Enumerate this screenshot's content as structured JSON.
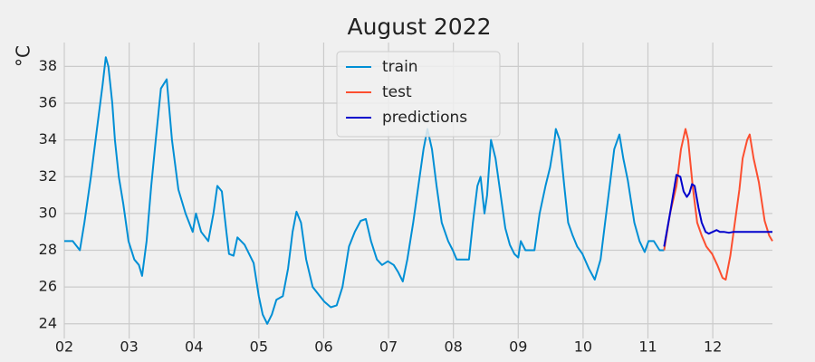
{
  "chart_data": {
    "type": "line",
    "title": "August 2022",
    "ylabel": "°C",
    "xlim": [
      2,
      12.92
    ],
    "ylim": [
      23.2,
      39.3
    ],
    "xticks": [
      {
        "value": 2,
        "label": "02"
      },
      {
        "value": 3,
        "label": "03"
      },
      {
        "value": 4,
        "label": "04"
      },
      {
        "value": 5,
        "label": "05"
      },
      {
        "value": 6,
        "label": "06"
      },
      {
        "value": 7,
        "label": "07"
      },
      {
        "value": 8,
        "label": "08"
      },
      {
        "value": 9,
        "label": "09"
      },
      {
        "value": 10,
        "label": "10"
      },
      {
        "value": 11,
        "label": "11"
      },
      {
        "value": 12,
        "label": "12"
      }
    ],
    "yticks": [
      24,
      26,
      28,
      30,
      32,
      34,
      36,
      38
    ],
    "grid": true,
    "legend": "upper center",
    "series": [
      {
        "name": "train",
        "color": "#008fd5",
        "x": [
          2.0,
          2.13,
          2.24,
          2.31,
          2.41,
          2.5,
          2.59,
          2.64,
          2.68,
          2.74,
          2.78,
          2.84,
          2.91,
          2.99,
          3.08,
          3.15,
          3.2,
          3.27,
          3.34,
          3.41,
          3.49,
          3.58,
          3.66,
          3.76,
          3.87,
          3.98,
          4.03,
          4.11,
          4.22,
          4.3,
          4.36,
          4.43,
          4.5,
          4.54,
          4.61,
          4.67,
          4.78,
          4.92,
          5.0,
          5.06,
          5.13,
          5.2,
          5.27,
          5.37,
          5.45,
          5.52,
          5.58,
          5.65,
          5.73,
          5.83,
          5.92,
          6.01,
          6.11,
          6.2,
          6.29,
          6.39,
          6.48,
          6.57,
          6.65,
          6.73,
          6.82,
          6.9,
          6.99,
          7.08,
          7.15,
          7.22,
          7.29,
          7.38,
          7.46,
          7.54,
          7.6,
          7.67,
          7.74,
          7.82,
          7.92,
          7.99,
          8.05,
          8.16,
          8.24,
          8.3,
          8.37,
          8.42,
          8.48,
          8.52,
          8.58,
          8.65,
          8.73,
          8.8,
          8.87,
          8.94,
          9.0,
          9.04,
          9.11,
          9.25,
          9.33,
          9.42,
          9.49,
          9.56,
          9.58,
          9.64,
          9.71,
          9.77,
          9.84,
          9.91,
          9.99,
          10.09,
          10.18,
          10.27,
          10.34,
          10.41,
          10.48,
          10.56,
          10.62,
          10.69,
          10.79,
          10.87,
          10.95,
          11.01,
          11.09,
          11.18,
          11.25
        ],
        "values": [
          28.5,
          28.5,
          28.0,
          29.5,
          32.0,
          34.5,
          37.0,
          38.5,
          38.0,
          36.0,
          34.0,
          32.0,
          30.5,
          28.5,
          27.5,
          27.2,
          26.6,
          28.5,
          31.5,
          34.0,
          36.8,
          37.3,
          34.0,
          31.3,
          30.0,
          29.0,
          30.0,
          29.0,
          28.5,
          30.0,
          31.5,
          31.2,
          29.0,
          27.8,
          27.7,
          28.7,
          28.3,
          27.3,
          25.5,
          24.5,
          24.0,
          24.5,
          25.3,
          25.5,
          27.0,
          29.0,
          30.1,
          29.5,
          27.5,
          26.0,
          25.6,
          25.2,
          24.9,
          25.0,
          26.0,
          28.2,
          29.0,
          29.6,
          29.7,
          28.5,
          27.5,
          27.2,
          27.4,
          27.2,
          26.8,
          26.3,
          27.5,
          29.5,
          31.5,
          33.5,
          34.6,
          33.5,
          31.5,
          29.5,
          28.5,
          28.0,
          27.5,
          27.5,
          27.5,
          29.5,
          31.5,
          32.0,
          30.0,
          31.0,
          34.0,
          33.0,
          31.0,
          29.2,
          28.3,
          27.8,
          27.6,
          28.5,
          28.0,
          28.0,
          30.0,
          31.5,
          32.5,
          34.0,
          34.6,
          34.0,
          31.5,
          29.5,
          28.8,
          28.2,
          27.8,
          27.0,
          26.4,
          27.5,
          29.5,
          31.5,
          33.5,
          34.3,
          33.0,
          31.8,
          29.5,
          28.5,
          27.9,
          28.5,
          28.5,
          28.0,
          28.0
        ]
      },
      {
        "name": "test",
        "color": "#fc4f30",
        "x": [
          11.25,
          11.34,
          11.44,
          11.51,
          11.58,
          11.62,
          11.69,
          11.76,
          11.83,
          11.9,
          11.99,
          12.07,
          12.15,
          12.2,
          12.27,
          12.34,
          12.41,
          12.46,
          12.53,
          12.57,
          12.63,
          12.71,
          12.8,
          12.87,
          12.92
        ],
        "values": [
          28.0,
          30.0,
          31.5,
          33.5,
          34.6,
          34.0,
          31.5,
          29.5,
          28.8,
          28.2,
          27.8,
          27.2,
          26.5,
          26.4,
          27.7,
          29.5,
          31.3,
          33.0,
          34.0,
          34.3,
          33.0,
          31.7,
          29.6,
          28.8,
          28.5
        ]
      },
      {
        "name": "predictions",
        "color": "#0000cc",
        "x": [
          11.25,
          11.34,
          11.44,
          11.5,
          11.55,
          11.6,
          11.64,
          11.68,
          11.72,
          11.78,
          11.83,
          11.89,
          11.94,
          12.0,
          12.06,
          12.11,
          12.17,
          12.25,
          12.32,
          12.6,
          12.92
        ],
        "values": [
          28.2,
          30.0,
          32.1,
          32.0,
          31.2,
          30.9,
          31.1,
          31.6,
          31.5,
          30.3,
          29.5,
          29.0,
          28.9,
          29.0,
          29.1,
          29.0,
          29.0,
          28.95,
          29.0,
          29.0,
          29.0
        ]
      }
    ]
  }
}
